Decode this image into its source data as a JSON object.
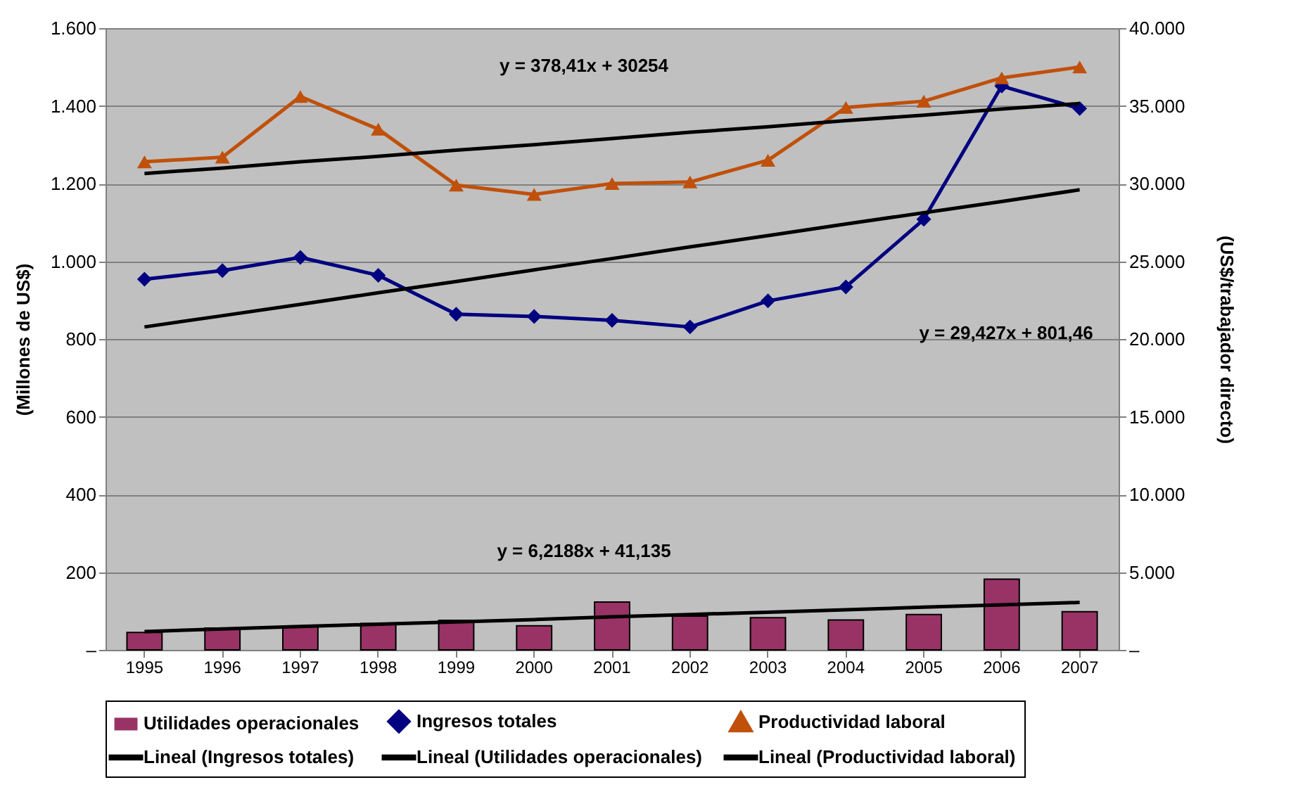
{
  "chart_data": {
    "type": "bar",
    "ylabel": "(Millones de US$)",
    "y2label": "(US$/trabajador directo)",
    "categories": [
      "1995",
      "1996",
      "1997",
      "1998",
      "1999",
      "2000",
      "2001",
      "2002",
      "2003",
      "2004",
      "2005",
      "2006",
      "2007"
    ],
    "series": [
      {
        "name": "Utilidades operacionales",
        "color": "#993366",
        "values": [
          45,
          56,
          61,
          68,
          76,
          62,
          123,
          87,
          83,
          77,
          91,
          182,
          98
        ]
      },
      {
        "name": "Ingresos totales",
        "type": "line",
        "marker": "diamond",
        "color": "#000080",
        "values": [
          954,
          976,
          1010,
          964,
          864,
          858,
          848,
          831,
          898,
          934,
          1108,
          1451,
          1393
        ]
      },
      {
        "name": "Productividad laboral",
        "type": "line",
        "marker": "triangle",
        "axis": "y2",
        "color": "#c0500a",
        "values": [
          31400,
          31700,
          35600,
          33500,
          29900,
          29300,
          30000,
          30100,
          31500,
          34900,
          35300,
          36800,
          37500
        ]
      },
      {
        "name": "Lineal (Ingresos totales)",
        "type": "line",
        "color": "#000000",
        "values": [
          831,
          860,
          889,
          919,
          948,
          978,
          1007,
          1037,
          1066,
          1096,
          1125,
          1154,
          1184
        ]
      },
      {
        "name": "Lineal (Utilidades operacionales)",
        "type": "line",
        "color": "#000000",
        "values": [
          47,
          54,
          60,
          66,
          72,
          78,
          85,
          91,
          97,
          103,
          110,
          116,
          122
        ]
      },
      {
        "name": "Lineal (Productividad laboral)",
        "type": "line",
        "axis": "y2",
        "color": "#000000",
        "values": [
          30650,
          31000,
          31400,
          31750,
          32150,
          32500,
          32900,
          33300,
          33650,
          34050,
          34400,
          34800,
          35150
        ]
      }
    ],
    "ylim": [
      0,
      1600
    ],
    "yticks": [
      {
        "value": 0,
        "label": "–"
      },
      200,
      400,
      600,
      800,
      {
        "value": 1000,
        "label": "1.000"
      },
      {
        "value": 1200,
        "label": "1.200"
      },
      {
        "value": 1400,
        "label": "1.400"
      },
      {
        "value": 1600,
        "label": "1.600"
      }
    ],
    "y2lim": [
      0,
      40000
    ],
    "y2ticks": [
      {
        "value": 0,
        "label": "–"
      },
      {
        "value": 5000,
        "label": "5.000"
      },
      {
        "value": 10000,
        "label": "10.000"
      },
      {
        "value": 15000,
        "label": "15.000"
      },
      {
        "value": 20000,
        "label": "20.000"
      },
      {
        "value": 25000,
        "label": "25.000"
      },
      {
        "value": 30000,
        "label": "30.000"
      },
      {
        "value": 35000,
        "label": "35.000"
      },
      {
        "value": 40000,
        "label": "40.000"
      }
    ],
    "annotations": [
      "y = 378,41x + 30254",
      "y = 29,427x + 801,46",
      "y = 6,2188x + 41,135"
    ],
    "grid": "y",
    "legend": "bottom",
    "line_style": "solid"
  }
}
